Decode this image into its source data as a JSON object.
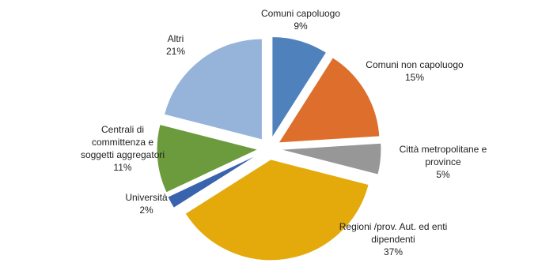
{
  "chart_data": {
    "type": "pie",
    "categories": [
      "Comuni capoluogo",
      "Comuni non capoluogo",
      "Città metropolitane  e province",
      "Regioni /prov. Aut. ed enti dipendenti",
      "Università",
      "Centrali di committenza e soggetti aggregatori",
      "Altri"
    ],
    "values": [
      9,
      15,
      5,
      37,
      2,
      11,
      21
    ],
    "value_labels": [
      "9%",
      "15%",
      "5%",
      "37%",
      "2%",
      "11%",
      "21%"
    ],
    "colors": [
      "#4f81bd",
      "#dd6e2c",
      "#979797",
      "#e4aa0c",
      "#3a63ad",
      "#6b9b3c",
      "#96b4da"
    ]
  }
}
